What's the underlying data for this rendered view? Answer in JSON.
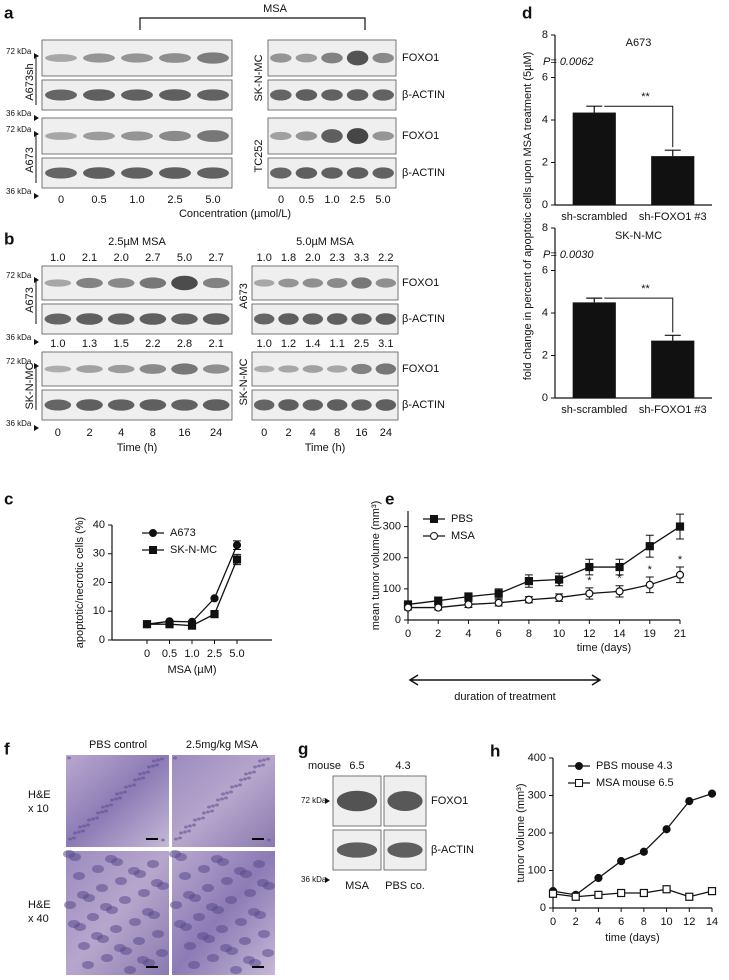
{
  "blots": {
    "a": {
      "letter": "a",
      "treatment": "MSA",
      "kda": [
        "72 kDa",
        "36 kDa"
      ],
      "left_cells": [
        "A673sh",
        "A673"
      ],
      "right_cells": [
        "SK-N-MC",
        "TC252"
      ],
      "proteins": [
        "FOXO1",
        "β-ACTIN"
      ],
      "lanes": [
        "0",
        "0.5",
        "1.0",
        "2.5",
        "5.0"
      ],
      "xlabel": "Concentration (µmol/L)"
    },
    "b": {
      "letter": "b",
      "treatments": [
        "2.5µM MSA",
        "5.0µM MSA"
      ],
      "kda": [
        "72 kDa",
        "36 kDa"
      ],
      "cells": [
        "A673",
        "SK-N-MC"
      ],
      "proteins": [
        "FOXO1",
        "β-ACTIN"
      ],
      "quantification": {
        "left": [
          [
            "1.0",
            "2.1",
            "2.0",
            "2.7",
            "5.0",
            "2.7"
          ],
          [
            "1.0",
            "1.3",
            "1.5",
            "2.2",
            "2.8",
            "2.1"
          ]
        ],
        "right": [
          [
            "1.0",
            "1.8",
            "2.0",
            "2.3",
            "3.3",
            "2.2"
          ],
          [
            "1.0",
            "1.2",
            "1.4",
            "1.1",
            "2.5",
            "3.1"
          ]
        ]
      },
      "lanes": [
        "0",
        "2",
        "4",
        "8",
        "16",
        "24"
      ],
      "xlabel": "Time (h)"
    },
    "g": {
      "letter": "g",
      "row_label": "mouse",
      "mice": [
        "6.5",
        "4.3"
      ],
      "kda": [
        "72 kDa",
        "36 kDa"
      ],
      "proteins": [
        "FOXO1",
        "β-ACTIN"
      ],
      "groups": [
        "MSA",
        "PBS co."
      ]
    }
  },
  "histology": {
    "letter": "f",
    "columns": [
      "PBS control",
      "2.5mg/kg MSA"
    ],
    "rows": [
      [
        "H&E",
        "x 10"
      ],
      [
        "H&E",
        "x 40"
      ]
    ]
  },
  "chart_data": [
    {
      "type": "bar",
      "panel": "d",
      "title": "A673",
      "ylabel": "fold change in percent of apoptotic cells upon MSA treatment (5µM)",
      "annotation": "P= 0.0062",
      "significance": "**",
      "categories": [
        "sh-scrambled",
        "sh-FOXO1 #3"
      ],
      "values": [
        4.35,
        2.3
      ],
      "errors": [
        0.3,
        0.28
      ],
      "color": "#111111",
      "ylim": [
        0,
        8
      ],
      "yticks": [
        0,
        2,
        4,
        6,
        8
      ]
    },
    {
      "type": "bar",
      "title": "SK-N-MC",
      "annotation": "P= 0.0030",
      "significance": "**",
      "categories": [
        "sh-scrambled",
        "sh-FOXO1 #3"
      ],
      "values": [
        4.5,
        2.7
      ],
      "errors": [
        0.2,
        0.25
      ],
      "color": "#111111",
      "ylim": [
        0,
        8
      ],
      "yticks": [
        0,
        2,
        4,
        6,
        8
      ]
    },
    {
      "type": "line",
      "panel": "c",
      "ylabel": "apoptotic/necrotic cells (%)",
      "xlabel": "MSA (µM)",
      "categories": [
        "0",
        "0.5",
        "1.0",
        "2.5",
        "5.0"
      ],
      "ylim": [
        0,
        40
      ],
      "yticks": [
        0,
        10,
        20,
        30,
        40
      ],
      "legend": "upper left",
      "series": [
        {
          "name": "A673",
          "color": "#111111",
          "marker": "circle",
          "filled": true,
          "values": [
            5.5,
            6.5,
            6.3,
            14.5,
            33
          ],
          "errors": [
            0.3,
            0.3,
            0.3,
            0.3,
            1.5
          ]
        },
        {
          "name": "SK-N-MC",
          "color": "#111111",
          "marker": "square",
          "filled": true,
          "values": [
            5.5,
            5.5,
            5,
            9,
            28
          ],
          "errors": [
            0.3,
            0.3,
            0.3,
            0.3,
            1.8
          ]
        }
      ]
    },
    {
      "type": "line",
      "panel": "e",
      "ylabel": "mean tumor volume (mm³)",
      "xlabel": "time (days)",
      "footnote": "duration of treatment",
      "categories": [
        "0",
        "2",
        "4",
        "6",
        "8",
        "10",
        "12",
        "14",
        "19",
        "21"
      ],
      "ylim": [
        0,
        350
      ],
      "yticks": [
        0,
        100,
        200,
        300
      ],
      "legend": "upper left",
      "series": [
        {
          "name": "PBS",
          "color": "#111111",
          "marker": "square",
          "filled": true,
          "values": [
            50,
            62,
            75,
            85,
            125,
            130,
            170,
            170,
            237,
            300
          ],
          "errors": [
            10,
            12,
            12,
            15,
            20,
            20,
            25,
            25,
            35,
            40
          ]
        },
        {
          "name": "MSA",
          "color": "#111111",
          "marker": "circle",
          "filled": false,
          "values": [
            40,
            40,
            50,
            55,
            65,
            72,
            85,
            92,
            113,
            145
          ],
          "errors": [
            8,
            8,
            10,
            10,
            10,
            12,
            18,
            18,
            25,
            25
          ]
        }
      ],
      "annotations": [
        {
          "text": "*",
          "x": "10"
        },
        {
          "text": "*",
          "x": "12"
        },
        {
          "text": "*",
          "x": "14"
        },
        {
          "text": "*",
          "x": "19"
        },
        {
          "text": "*",
          "x": "21"
        }
      ]
    },
    {
      "type": "line",
      "panel": "h",
      "ylabel": "tumor volume (mm³)",
      "xlabel": "time (days)",
      "x": [
        0,
        2,
        4,
        6,
        8,
        10,
        12,
        14
      ],
      "xlim": [
        0,
        14
      ],
      "xticks": [
        0,
        2,
        4,
        6,
        8,
        10,
        12,
        14
      ],
      "ylim": [
        0,
        400
      ],
      "yticks": [
        0,
        100,
        200,
        300,
        400
      ],
      "legend": "upper left",
      "series": [
        {
          "name": "PBS mouse 4.3",
          "color": "#111111",
          "marker": "circle",
          "filled": true,
          "values": [
            45,
            35,
            80,
            125,
            150,
            210,
            285,
            305
          ]
        },
        {
          "name": "MSA mouse 6.5",
          "color": "#111111",
          "marker": "square",
          "filled": false,
          "values": [
            38,
            30,
            35,
            40,
            40,
            50,
            30,
            45
          ]
        }
      ]
    }
  ]
}
